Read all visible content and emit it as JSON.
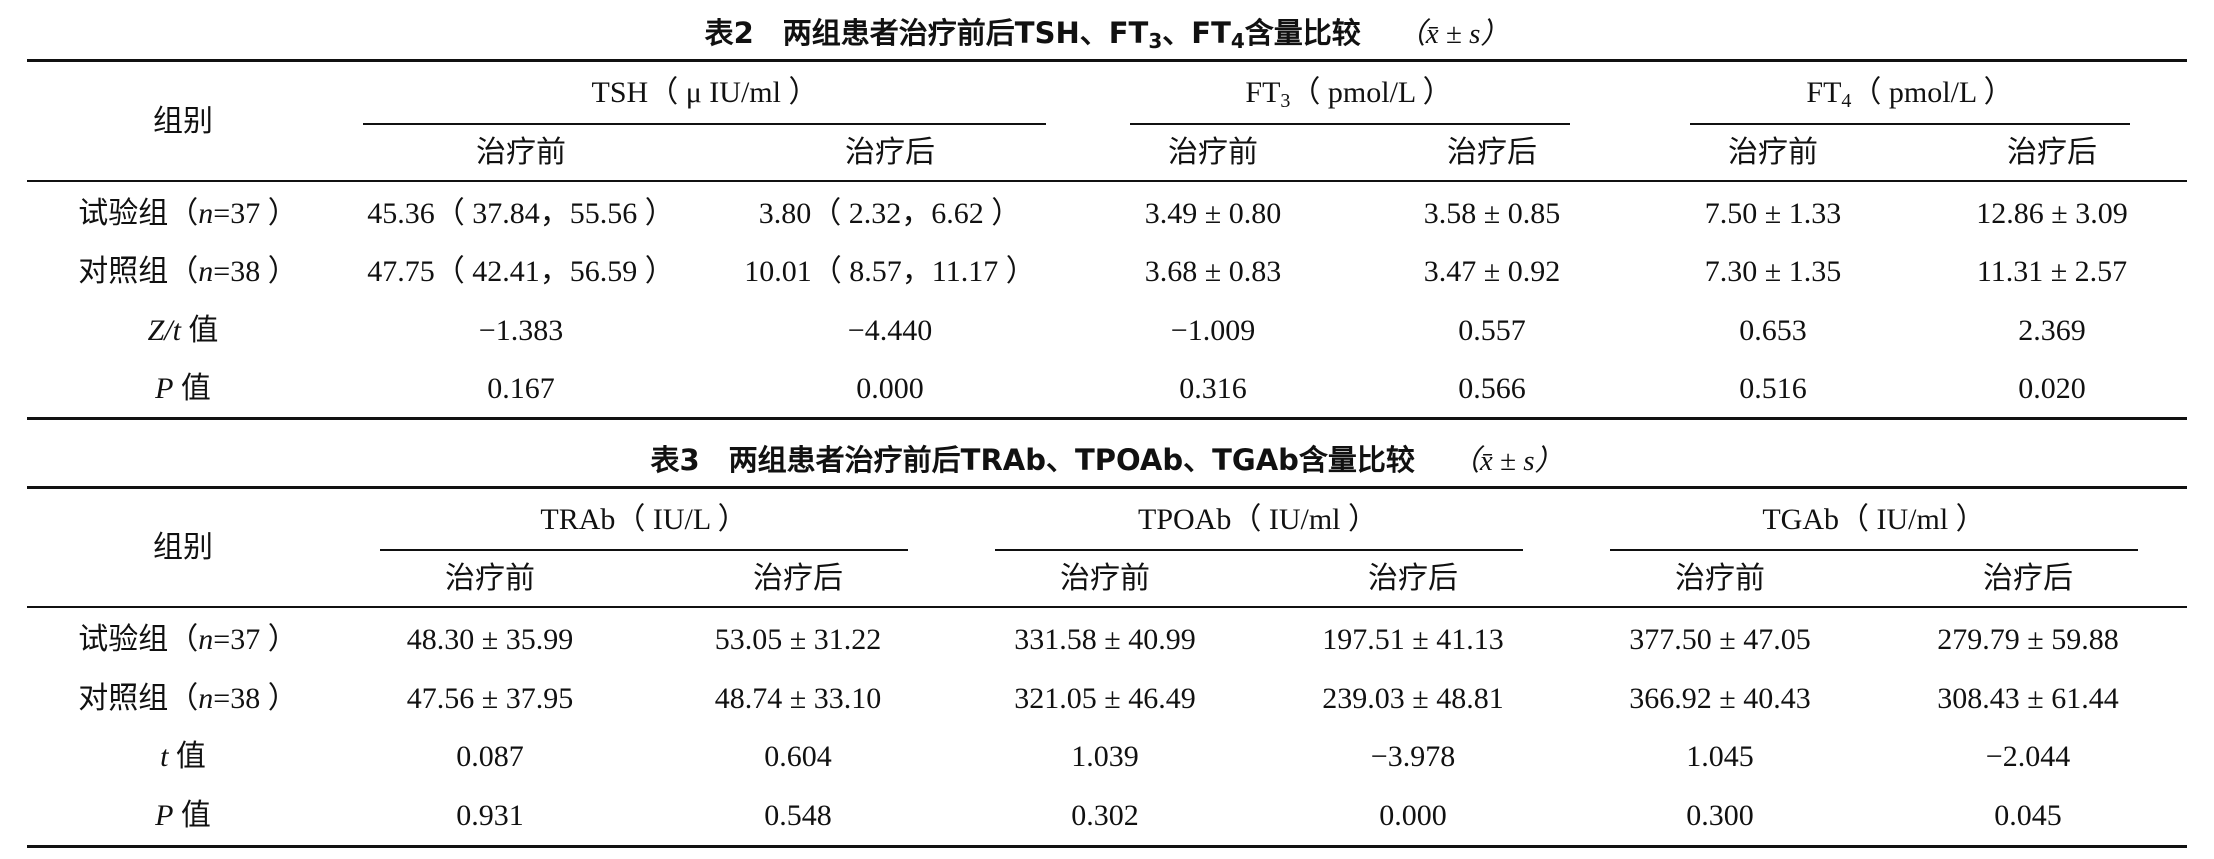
{
  "table2": {
    "caption_prefix": "表2　两组患者治疗前后TSH、FT",
    "caption_sub1": "3",
    "caption_mid": "、FT",
    "caption_sub2": "4",
    "caption_suffix": "含量比较",
    "caption_stat": "（x̄ ± s）",
    "header": {
      "group": "组别",
      "tsh": "TSH（ μ IU/ml ）",
      "ft3_prefix": "FT",
      "ft3_sub": "3",
      "ft3_unit": "（ pmol/L ）",
      "ft4_prefix": "FT",
      "ft4_sub": "4",
      "ft4_unit": "（ pmol/L ）",
      "before": "治疗前",
      "after": "治疗后"
    },
    "rows": [
      {
        "label_prefix": "试验组（",
        "label_n": "n",
        "label_suffix": "=37 ）",
        "values": [
          "45.36（ 37.84，55.56 ）",
          "3.80（ 2.32，6.62 ）",
          "3.49 ± 0.80",
          "3.58 ± 0.85",
          "7.50 ± 1.33",
          "12.86 ± 3.09"
        ]
      },
      {
        "label_prefix": "对照组（",
        "label_n": "n",
        "label_suffix": "=38 ）",
        "values": [
          "47.75（ 42.41，56.59 ）",
          "10.01（ 8.57，11.17 ）",
          "3.68 ± 0.83",
          "3.47 ± 0.92",
          "7.30 ± 1.35",
          "11.31 ± 2.57"
        ]
      },
      {
        "label_prefix": "",
        "label_n": "Z/t",
        "label_suffix": " 值",
        "values": [
          "−1.383",
          "−4.440",
          "−1.009",
          "0.557",
          "0.653",
          "2.369"
        ]
      },
      {
        "label_prefix": "",
        "label_n": "P",
        "label_suffix": " 值",
        "values": [
          "0.167",
          "0.000",
          "0.316",
          "0.566",
          "0.516",
          "0.020"
        ]
      }
    ]
  },
  "table3": {
    "caption": "表3　两组患者治疗前后TRAb、TPOAb、TGAb含量比较",
    "caption_stat": "（x̄ ± s）",
    "header": {
      "group": "组别",
      "trab": "TRAb（ IU/L ）",
      "tpoab": "TPOAb（ IU/ml ）",
      "tgab": "TGAb（ IU/ml ）",
      "before": "治疗前",
      "after": "治疗后"
    },
    "rows": [
      {
        "label_prefix": "试验组（",
        "label_n": "n",
        "label_suffix": "=37 ）",
        "values": [
          "48.30 ± 35.99",
          "53.05 ± 31.22",
          "331.58 ± 40.99",
          "197.51 ± 41.13",
          "377.50 ± 47.05",
          "279.79 ± 59.88"
        ]
      },
      {
        "label_prefix": "对照组（",
        "label_n": "n",
        "label_suffix": "=38 ）",
        "values": [
          "47.56 ± 37.95",
          "48.74 ± 33.10",
          "321.05 ± 46.49",
          "239.03 ± 48.81",
          "366.92 ± 40.43",
          "308.43 ± 61.44"
        ]
      },
      {
        "label_prefix": "",
        "label_n": "t",
        "label_suffix": " 值",
        "values": [
          "0.087",
          "0.604",
          "1.039",
          "−3.978",
          "1.045",
          "−2.044"
        ]
      },
      {
        "label_prefix": "",
        "label_n": "P",
        "label_suffix": " 值",
        "values": [
          "0.931",
          "0.548",
          "0.302",
          "0.000",
          "0.300",
          "0.045"
        ]
      }
    ]
  }
}
